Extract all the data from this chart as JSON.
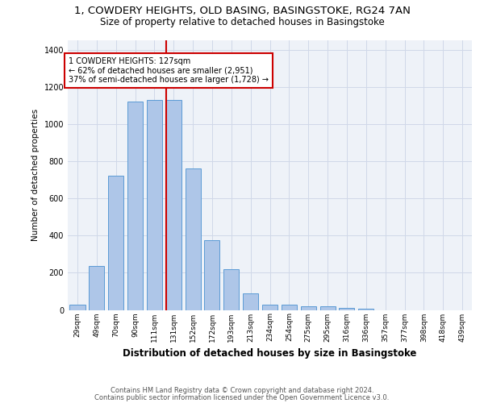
{
  "title_line1": "1, COWDERY HEIGHTS, OLD BASING, BASINGSTOKE, RG24 7AN",
  "title_line2": "Size of property relative to detached houses in Basingstoke",
  "xlabel": "Distribution of detached houses by size in Basingstoke",
  "ylabel": "Number of detached properties",
  "footer_line1": "Contains HM Land Registry data © Crown copyright and database right 2024.",
  "footer_line2": "Contains public sector information licensed under the Open Government Licence v3.0.",
  "bar_labels": [
    "29sqm",
    "49sqm",
    "70sqm",
    "90sqm",
    "111sqm",
    "131sqm",
    "152sqm",
    "172sqm",
    "193sqm",
    "213sqm",
    "234sqm",
    "254sqm",
    "275sqm",
    "295sqm",
    "316sqm",
    "336sqm",
    "357sqm",
    "377sqm",
    "398sqm",
    "418sqm",
    "439sqm"
  ],
  "bar_values": [
    28,
    235,
    720,
    1120,
    1130,
    1130,
    760,
    375,
    220,
    90,
    28,
    30,
    20,
    20,
    10,
    8,
    0,
    0,
    0,
    0,
    0
  ],
  "bar_color": "#aec6e8",
  "bar_edge_color": "#5b9bd5",
  "vline_color": "#cc0000",
  "vline_bar_index": 5,
  "annotation_text": "1 COWDERY HEIGHTS: 127sqm\n← 62% of detached houses are smaller (2,951)\n37% of semi-detached houses are larger (1,728) →",
  "ylim": [
    0,
    1450
  ],
  "yticks": [
    0,
    200,
    400,
    600,
    800,
    1000,
    1200,
    1400
  ],
  "grid_color": "#d0d8e8",
  "bg_color": "#eef2f8",
  "title1_fontsize": 9.5,
  "title2_fontsize": 8.5,
  "ylabel_fontsize": 7.5,
  "xlabel_fontsize": 8.5,
  "tick_fontsize": 6.5,
  "footer_fontsize": 6.0
}
